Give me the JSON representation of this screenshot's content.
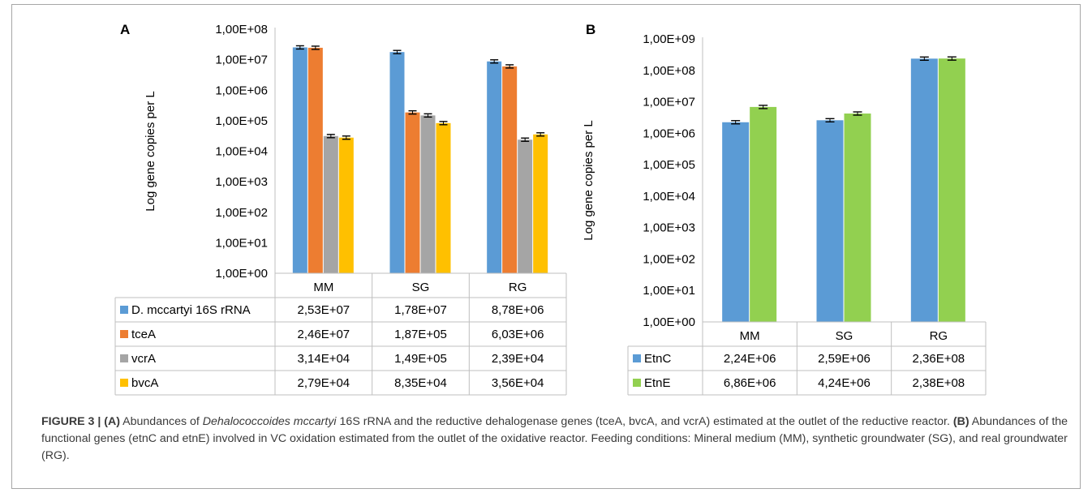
{
  "chart_data": [
    {
      "type": "bar",
      "panel": "A",
      "ylabel": "Log gene copies per L",
      "yscale": "log",
      "ylim": [
        1,
        100000000
      ],
      "y_ticks": [
        "1,00E+00",
        "1,00E+01",
        "1,00E+02",
        "1,00E+03",
        "1,00E+04",
        "1,00E+05",
        "1,00E+06",
        "1,00E+07",
        "1,00E+08"
      ],
      "categories": [
        "MM",
        "SG",
        "RG"
      ],
      "series": [
        {
          "name": "D. mccartyi 16S rRNA",
          "color": "#5b9bd5",
          "values": [
            25300000,
            17800000,
            8780000
          ],
          "labels": [
            "2,53E+07",
            "1,78E+07",
            "8,78E+06"
          ]
        },
        {
          "name": "tceA",
          "color": "#ed7d31",
          "values": [
            24600000,
            187000,
            6030000
          ],
          "labels": [
            "2,46E+07",
            "1,87E+05",
            "6,03E+06"
          ]
        },
        {
          "name": "vcrA",
          "color": "#a5a5a5",
          "values": [
            31400,
            149000,
            23900
          ],
          "labels": [
            "3,14E+04",
            "1,49E+05",
            "2,39E+04"
          ]
        },
        {
          "name": "bvcA",
          "color": "#ffc000",
          "values": [
            27900,
            83500,
            35600
          ],
          "labels": [
            "2,79E+04",
            "8,35E+04",
            "3,56E+04"
          ]
        }
      ]
    },
    {
      "type": "bar",
      "panel": "B",
      "ylabel": "Log gene copies per L",
      "yscale": "log",
      "ylim": [
        1,
        1000000000
      ],
      "y_ticks": [
        "1,00E+00",
        "1,00E+01",
        "1,00E+02",
        "1,00E+03",
        "1,00E+04",
        "1,00E+05",
        "1,00E+06",
        "1,00E+07",
        "1,00E+08",
        "1,00E+09"
      ],
      "categories": [
        "MM",
        "SG",
        "RG"
      ],
      "series": [
        {
          "name": "EtnC",
          "color": "#5b9bd5",
          "values": [
            2240000,
            2590000,
            236000000
          ],
          "labels": [
            "2,24E+06",
            "2,59E+06",
            "2,36E+08"
          ]
        },
        {
          "name": "EtnE",
          "color": "#92d050",
          "values": [
            6860000,
            4240000,
            238000000
          ],
          "labels": [
            "6,86E+06",
            "4,24E+06",
            "2,38E+08"
          ]
        }
      ]
    }
  ],
  "caption": {
    "label": "FIGURE 3 |",
    "a_tag": "(A)",
    "a_text_1": "Abundances of ",
    "a_species": "Dehalococcoides mccartyi",
    "a_text_2": " 16S rRNA and the reductive dehalogenase genes (tceA, bvcA, and vcrA) estimated at the outlet of the reductive reactor. ",
    "b_tag": "(B)",
    "b_text": "Abundances of the functional genes (etnC and etnE) involved in VC oxidation estimated from the outlet of the oxidative reactor. Feeding conditions: Mineral medium (MM), synthetic groundwater (SG), and real groundwater (RG)."
  }
}
